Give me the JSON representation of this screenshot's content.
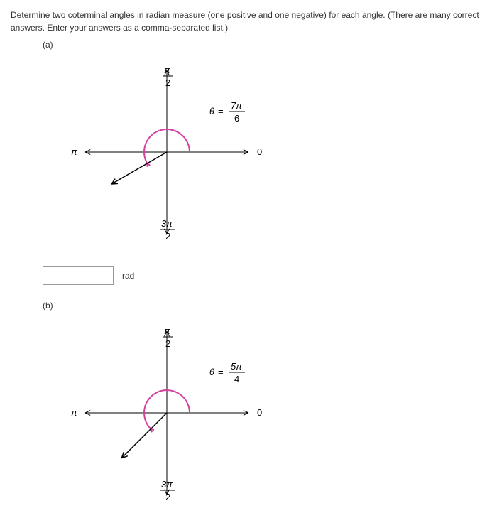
{
  "instructions": {
    "line1": "Determine two coterminal angles in radian measure (one positive and one negative) for each angle. (There are many correct",
    "line2": "answers. Enter your answers as a comma-separated list.)"
  },
  "parts": [
    {
      "label": "(a)",
      "chart": {
        "type": "angle-diagram",
        "colors": {
          "axis": "#000000",
          "arc": "#d6409f",
          "terminal": "#000000",
          "text": "#000000"
        },
        "axis_labels": {
          "right": "0",
          "left": "π",
          "top_num": "π",
          "top_den": "2",
          "bottom_num": "3π",
          "bottom_den": "2"
        },
        "theta": {
          "lhs": "θ =",
          "num": "7π",
          "den": "6"
        },
        "terminal_angle_deg": 210,
        "arc_radius": 32,
        "arrow_length": 90,
        "axis_half": 115
      },
      "answer": {
        "value": "",
        "unit": "rad"
      }
    },
    {
      "label": "(b)",
      "chart": {
        "type": "angle-diagram",
        "colors": {
          "axis": "#000000",
          "arc": "#d6409f",
          "terminal": "#000000",
          "text": "#000000"
        },
        "axis_labels": {
          "right": "0",
          "left": "π",
          "top_num": "π",
          "top_den": "2",
          "bottom_num": "3π",
          "bottom_den": "2"
        },
        "theta": {
          "lhs": "θ =",
          "num": "5π",
          "den": "4"
        },
        "terminal_angle_deg": 225,
        "arc_radius": 32,
        "arrow_length": 90,
        "axis_half": 115
      }
    }
  ]
}
